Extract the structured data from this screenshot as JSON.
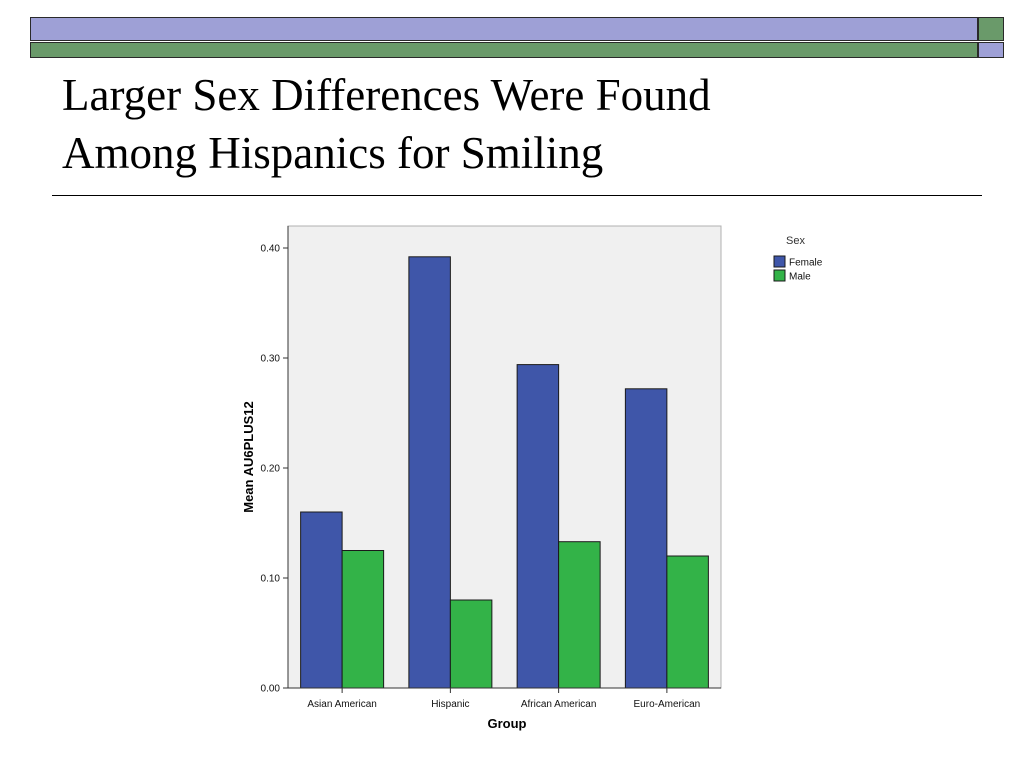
{
  "slide": {
    "title_line1": "Larger Sex Differences Were Found",
    "title_line2": "Among Hispanics for Smiling"
  },
  "colors": {
    "band_purple": "#9ea0d6",
    "band_green": "#6a9a6a",
    "plot_background": "#f0f0f0",
    "female": "#3f56a9",
    "male": "#33b348"
  },
  "chart_data": {
    "type": "bar",
    "title": "",
    "xlabel": "Group",
    "ylabel": "Mean AU6PLUS12",
    "categories": [
      "Asian American",
      "Hispanic",
      "African American",
      "Euro-American"
    ],
    "series": [
      {
        "name": "Female",
        "color": "#3f56a9",
        "values": [
          0.16,
          0.392,
          0.294,
          0.272
        ]
      },
      {
        "name": "Male",
        "color": "#33b348",
        "values": [
          0.125,
          0.08,
          0.133,
          0.12
        ]
      }
    ],
    "ylim": [
      0,
      0.42
    ],
    "yticks": [
      0.0,
      0.1,
      0.2,
      0.3,
      0.4
    ],
    "ytick_labels": [
      "0.00",
      "0.10",
      "0.20",
      "0.30",
      "0.40"
    ],
    "legend": {
      "title": "Sex",
      "position": "outside-top-right"
    },
    "grid": false
  }
}
